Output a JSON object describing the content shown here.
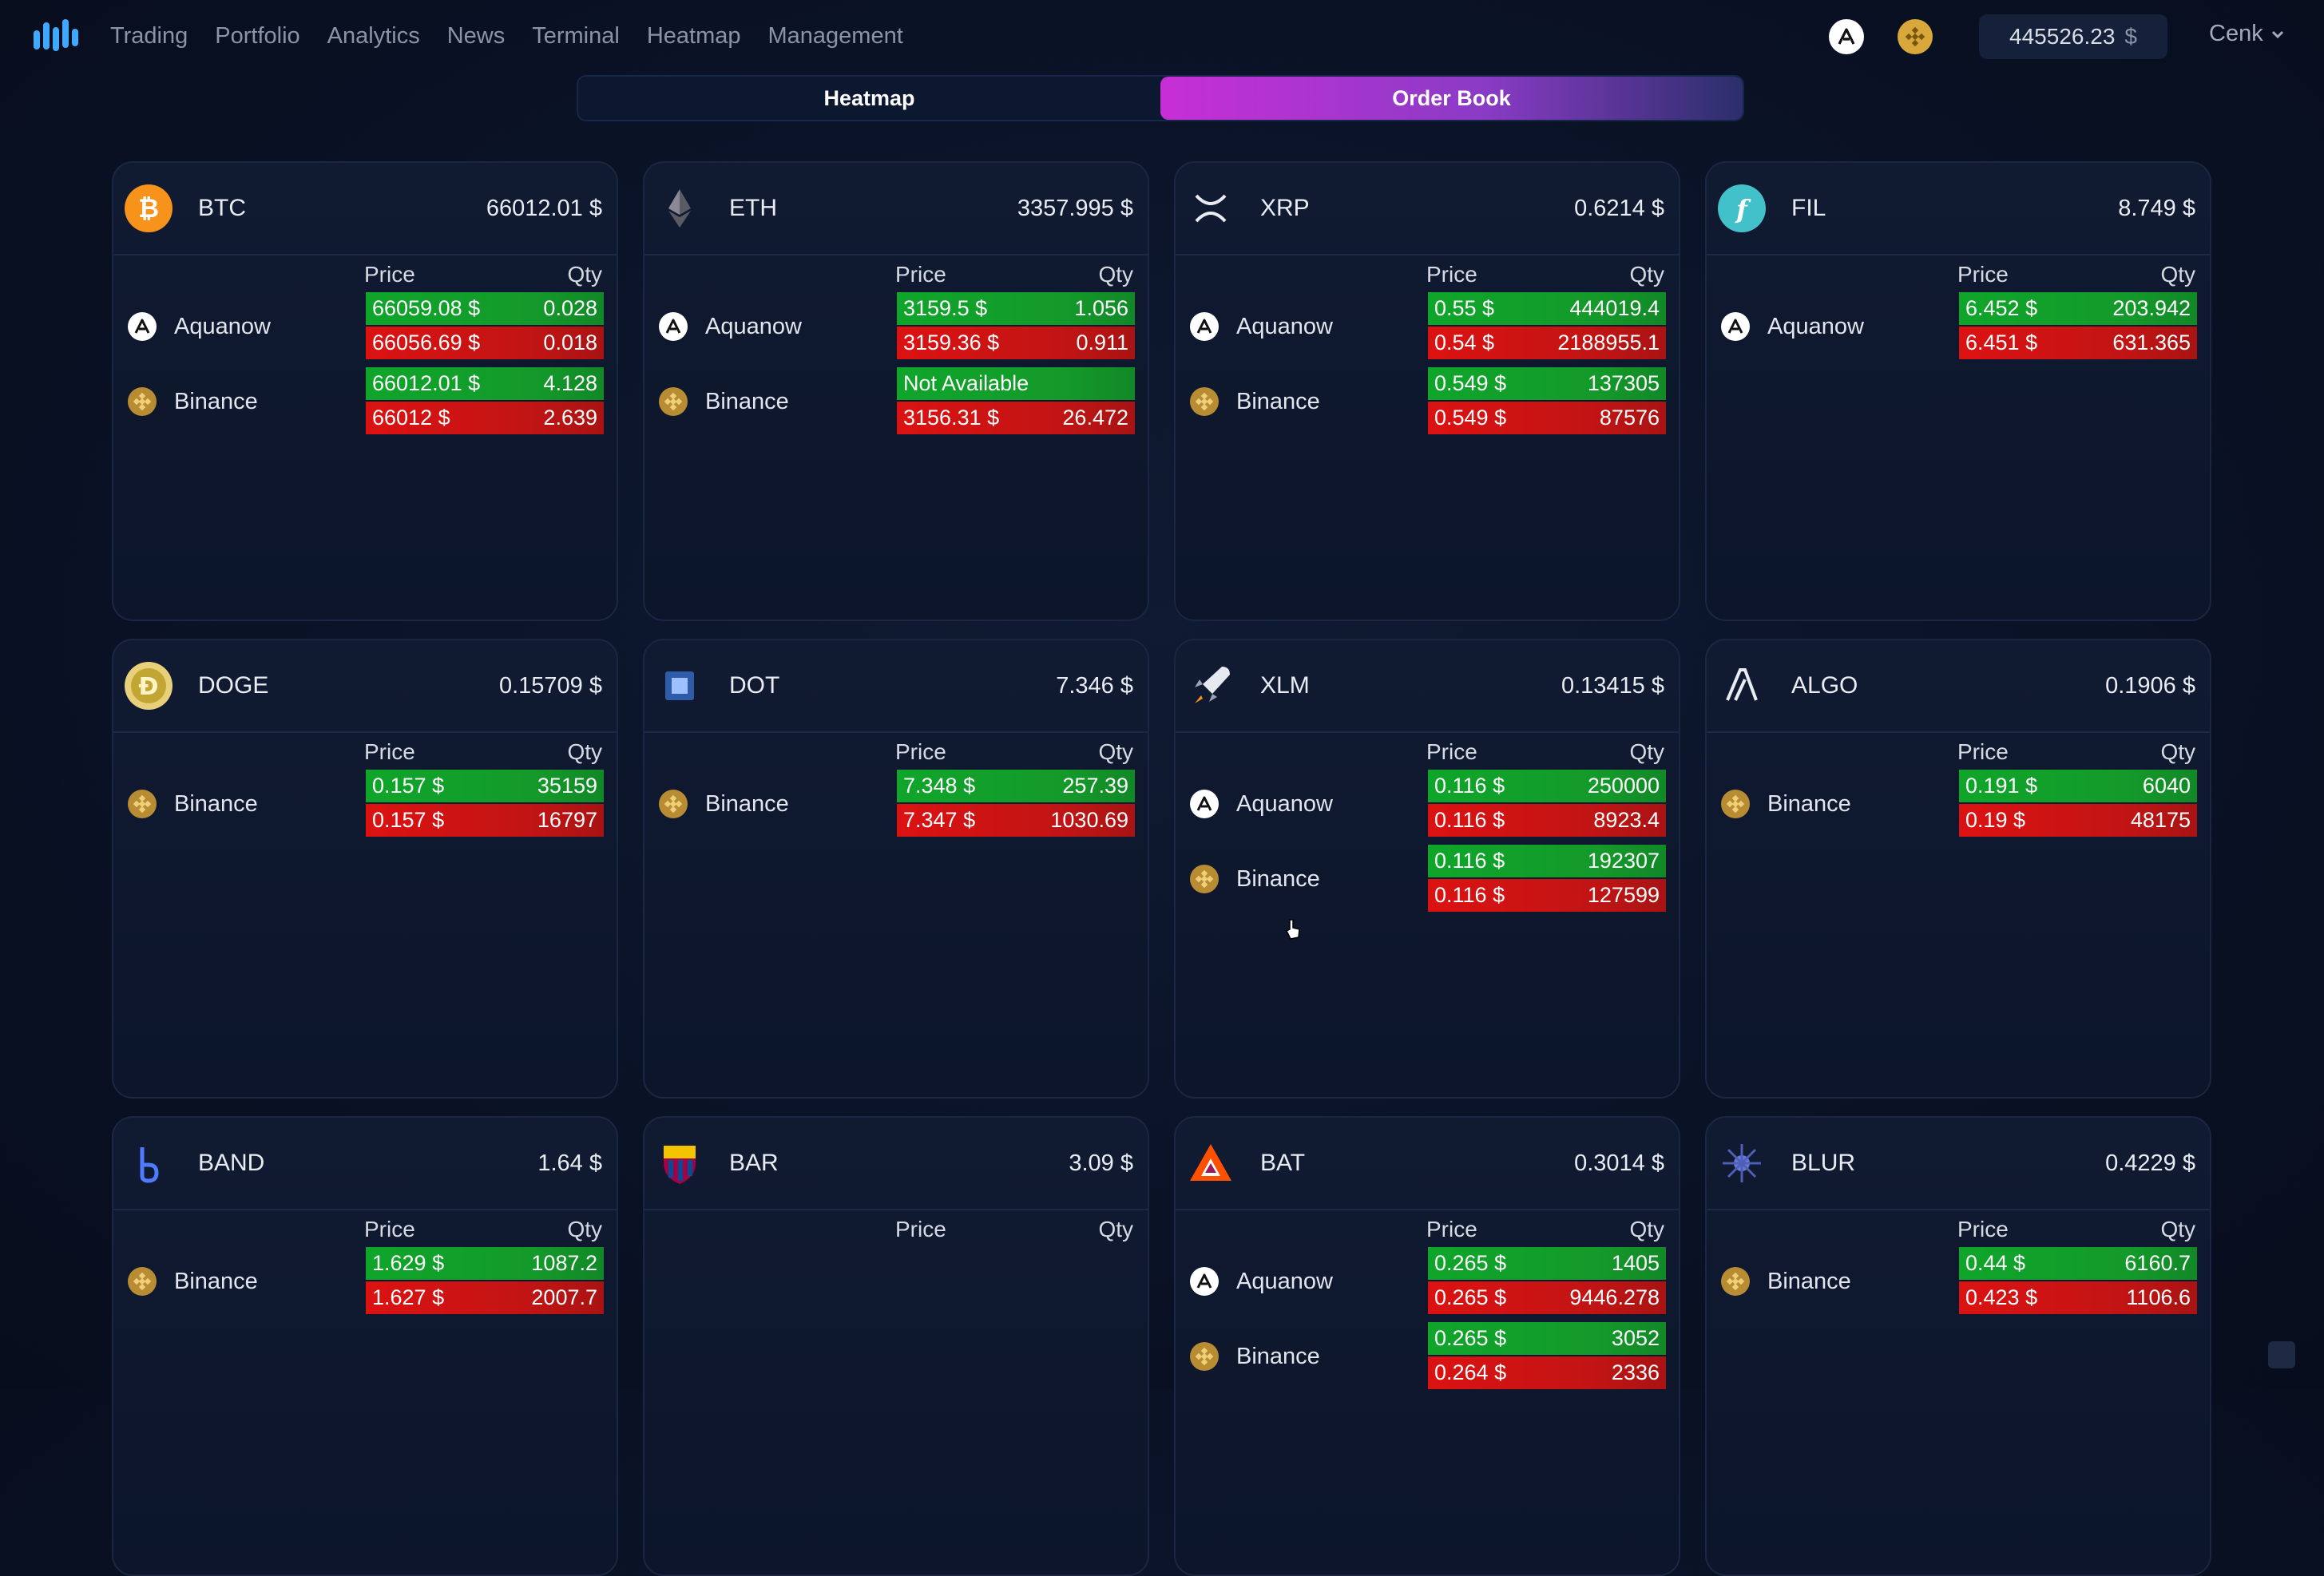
{
  "nav": {
    "items": [
      {
        "label": "Trading"
      },
      {
        "label": "Portfolio"
      },
      {
        "label": "Analytics"
      },
      {
        "label": "News"
      },
      {
        "label": "Terminal"
      },
      {
        "label": "Heatmap"
      },
      {
        "label": "Management"
      }
    ]
  },
  "account": {
    "balance": "445526.23",
    "currency": "$",
    "user": "Cenk"
  },
  "tabs": [
    {
      "label": "Heatmap",
      "active": false
    },
    {
      "label": "Order Book",
      "active": true
    }
  ],
  "orderbook": {
    "price_header": "Price",
    "qty_header": "Qty"
  },
  "cards": [
    {
      "symbol": "BTC",
      "price": "66012.01 $",
      "icon": "bitcoin-icon",
      "color": "#f7931a",
      "exchanges": [
        {
          "name": "Aquanow",
          "icon": "aquanow-icon",
          "bid_price": "66059.08 $",
          "bid_qty": "0.028",
          "ask_price": "66056.69 $",
          "ask_qty": "0.018"
        },
        {
          "name": "Binance",
          "icon": "binance-icon",
          "bid_price": "66012.01 $",
          "bid_qty": "4.128",
          "ask_price": "66012 $",
          "ask_qty": "2.639"
        }
      ]
    },
    {
      "symbol": "ETH",
      "price": "3357.995 $",
      "icon": "ethereum-icon",
      "color": "#3c3c3d",
      "exchanges": [
        {
          "name": "Aquanow",
          "icon": "aquanow-icon",
          "bid_price": "3159.5 $",
          "bid_qty": "1.056",
          "ask_price": "3159.36 $",
          "ask_qty": "0.911"
        },
        {
          "name": "Binance",
          "icon": "binance-icon",
          "bid_price": "Not Available",
          "bid_qty": "",
          "ask_price": "3156.31 $",
          "ask_qty": "26.472"
        }
      ]
    },
    {
      "symbol": "XRP",
      "price": "0.6214 $",
      "icon": "xrp-icon",
      "color": "#23292f",
      "exchanges": [
        {
          "name": "Aquanow",
          "icon": "aquanow-icon",
          "bid_price": "0.55 $",
          "bid_qty": "444019.4",
          "ask_price": "0.54 $",
          "ask_qty": "2188955.1"
        },
        {
          "name": "Binance",
          "icon": "binance-icon",
          "bid_price": "0.549 $",
          "bid_qty": "137305",
          "ask_price": "0.549 $",
          "ask_qty": "87576"
        }
      ]
    },
    {
      "symbol": "FIL",
      "price": "8.749 $",
      "icon": "filecoin-icon",
      "color": "#42c1ca",
      "exchanges": [
        {
          "name": "Aquanow",
          "icon": "aquanow-icon",
          "bid_price": "6.452 $",
          "bid_qty": "203.942",
          "ask_price": "6.451 $",
          "ask_qty": "631.365"
        }
      ]
    },
    {
      "symbol": "DOGE",
      "price": "0.15709 $",
      "icon": "dogecoin-icon",
      "color": "#c2a633",
      "exchanges": [
        {
          "name": "Binance",
          "icon": "binance-icon",
          "bid_price": "0.157 $",
          "bid_qty": "35159",
          "ask_price": "0.157 $",
          "ask_qty": "16797"
        }
      ]
    },
    {
      "symbol": "DOT",
      "price": "7.346 $",
      "icon": "polkadot-icon",
      "color": "#2c4a8a",
      "exchanges": [
        {
          "name": "Binance",
          "icon": "binance-icon",
          "bid_price": "7.348 $",
          "bid_qty": "257.39",
          "ask_price": "7.347 $",
          "ask_qty": "1030.69"
        }
      ]
    },
    {
      "symbol": "XLM",
      "price": "0.13415 $",
      "icon": "stellar-rocket-icon",
      "color": "#1a2540",
      "exchanges": [
        {
          "name": "Aquanow",
          "icon": "aquanow-icon",
          "bid_price": "0.116 $",
          "bid_qty": "250000",
          "ask_price": "0.116 $",
          "ask_qty": "8923.4"
        },
        {
          "name": "Binance",
          "icon": "binance-icon",
          "bid_price": "0.116 $",
          "bid_qty": "192307",
          "ask_price": "0.116 $",
          "ask_qty": "127599"
        }
      ]
    },
    {
      "symbol": "ALGO",
      "price": "0.1906 $",
      "icon": "algorand-icon",
      "color": "#000000",
      "exchanges": [
        {
          "name": "Binance",
          "icon": "binance-icon",
          "bid_price": "0.191 $",
          "bid_qty": "6040",
          "ask_price": "0.19 $",
          "ask_qty": "48175"
        }
      ]
    },
    {
      "symbol": "BAND",
      "price": "1.64 $",
      "icon": "band-icon",
      "color": "#1a2540",
      "exchanges": [
        {
          "name": "Binance",
          "icon": "binance-icon",
          "bid_price": "1.629 $",
          "bid_qty": "1087.2",
          "ask_price": "1.627 $",
          "ask_qty": "2007.7"
        }
      ]
    },
    {
      "symbol": "BAR",
      "price": "3.09 $",
      "icon": "fc-barcelona-icon",
      "color": "#a50044",
      "exchanges": []
    },
    {
      "symbol": "BAT",
      "price": "0.3014 $",
      "icon": "bat-triangle-icon",
      "color": "#1a2540",
      "exchanges": [
        {
          "name": "Aquanow",
          "icon": "aquanow-icon",
          "bid_price": "0.265 $",
          "bid_qty": "1405",
          "ask_price": "0.265 $",
          "ask_qty": "9446.278"
        },
        {
          "name": "Binance",
          "icon": "binance-icon",
          "bid_price": "0.265 $",
          "bid_qty": "3052",
          "ask_price": "0.264 $",
          "ask_qty": "2336"
        }
      ]
    },
    {
      "symbol": "BLUR",
      "price": "0.4229 $",
      "icon": "blur-icon",
      "color": "#1a2540",
      "exchanges": [
        {
          "name": "Binance",
          "icon": "binance-icon",
          "bid_price": "0.44 $",
          "bid_qty": "6160.7",
          "ask_price": "0.423 $",
          "ask_qty": "1106.6"
        }
      ]
    }
  ]
}
